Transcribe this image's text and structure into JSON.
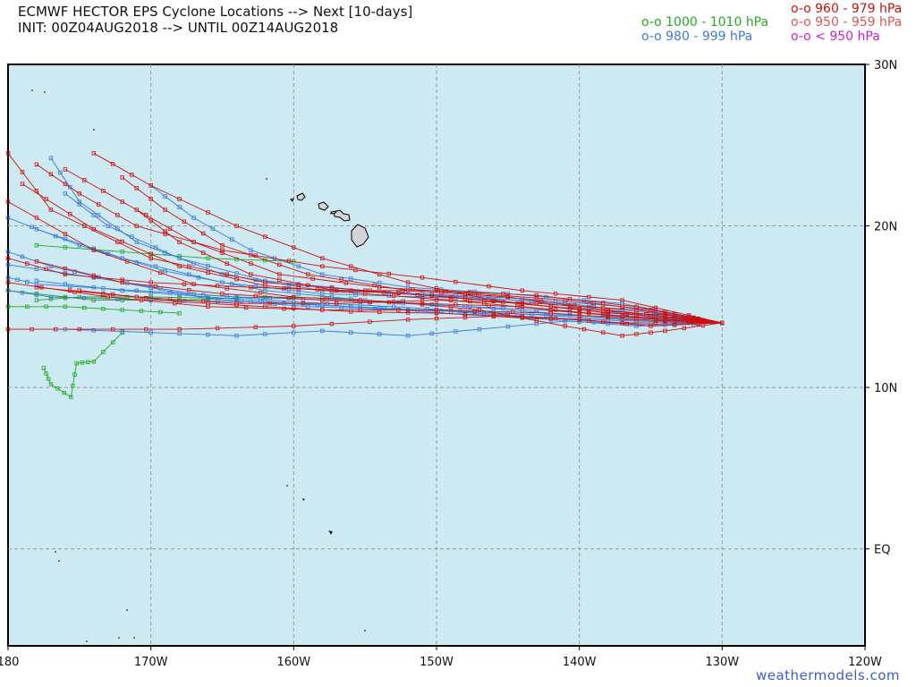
{
  "header": {
    "title": "ECMWF HECTOR EPS Cyclone Locations --> Next [10-days]",
    "init": "INIT: 00Z04AUG2018 --> UNTIL 00Z14AUG2018"
  },
  "legend": [
    {
      "label": "o-o 960 - 979 hPa",
      "color": "#cc1111"
    },
    {
      "label": "o-o 1000 - 1010 hPa",
      "color": "#22aa22"
    },
    {
      "label": "o-o 950 - 959 hPa",
      "color": "#e05555"
    },
    {
      "label": "o-o 980 - 999 hPa",
      "color": "#3a7ad8"
    },
    {
      "label": "o-o < 950 hPa",
      "color": "#cc22cc"
    }
  ],
  "axes": {
    "x_ticks": [
      "180",
      "170W",
      "160W",
      "150W",
      "140W",
      "130W",
      "120W"
    ],
    "y_ticks": [
      "30N",
      "20N",
      "10N",
      "EQ"
    ]
  },
  "credit": "weathermodels.com",
  "colors": {
    "ocean": "#cde9f1",
    "grid": "#999999",
    "red": "#cc1111",
    "blue": "#3a7ad8",
    "green": "#22aa22"
  },
  "chart_data": {
    "type": "map-tracks",
    "lon_range": [
      -180,
      -120
    ],
    "lat_range": [
      -6,
      30
    ],
    "origin": {
      "lon": -130,
      "lat": 14
    },
    "tracks": [
      {
        "color": "red",
        "points": [
          [
            -130,
            14
          ],
          [
            -134,
            14.5
          ],
          [
            -138,
            14.6
          ],
          [
            -142,
            15
          ],
          [
            -148,
            15.5
          ],
          [
            -155,
            16
          ],
          [
            -162,
            16.5
          ],
          [
            -170,
            18
          ],
          [
            -177,
            21
          ],
          [
            -180,
            24.5
          ]
        ]
      },
      {
        "color": "red",
        "points": [
          [
            -130,
            14
          ],
          [
            -135,
            14.4
          ],
          [
            -140,
            14.8
          ],
          [
            -146,
            15.4
          ],
          [
            -152,
            16.5
          ],
          [
            -158,
            18
          ],
          [
            -164,
            20
          ],
          [
            -170,
            22.5
          ],
          [
            -174,
            24.5
          ]
        ]
      },
      {
        "color": "red",
        "points": [
          [
            -130,
            14
          ],
          [
            -135,
            14.8
          ],
          [
            -141,
            15.4
          ],
          [
            -147,
            15.8
          ],
          [
            -154,
            16.2
          ],
          [
            -161,
            17
          ],
          [
            -167,
            19
          ],
          [
            -172,
            21.5
          ],
          [
            -176,
            23.5
          ]
        ]
      },
      {
        "color": "red",
        "points": [
          [
            -130,
            14
          ],
          [
            -136,
            14.6
          ],
          [
            -142,
            15
          ],
          [
            -149,
            15.6
          ],
          [
            -156,
            16
          ],
          [
            -163,
            16.2
          ],
          [
            -170,
            16.5
          ],
          [
            -176,
            17
          ],
          [
            -180,
            18
          ]
        ]
      },
      {
        "color": "red",
        "points": [
          [
            -130,
            14
          ],
          [
            -136,
            14.2
          ],
          [
            -142,
            14.6
          ],
          [
            -150,
            14.8
          ],
          [
            -158,
            14.8
          ],
          [
            -166,
            15
          ],
          [
            -173,
            15.6
          ],
          [
            -180,
            16.5
          ]
        ]
      },
      {
        "color": "red",
        "points": [
          [
            -130,
            14
          ],
          [
            -135,
            13.8
          ],
          [
            -140,
            14.2
          ],
          [
            -146,
            14.4
          ],
          [
            -152,
            14.2
          ],
          [
            -160,
            13.8
          ],
          [
            -168,
            13.6
          ],
          [
            -175,
            13.6
          ],
          [
            -180,
            13.6
          ]
        ]
      },
      {
        "color": "red",
        "points": [
          [
            -130,
            14
          ],
          [
            -137,
            15.4
          ],
          [
            -144,
            16
          ],
          [
            -151,
            16.8
          ],
          [
            -158,
            17.5
          ],
          [
            -165,
            18.5
          ],
          [
            -171,
            20
          ],
          [
            -175,
            22
          ],
          [
            -178,
            23.8
          ]
        ]
      },
      {
        "color": "red",
        "points": [
          [
            -130,
            14
          ],
          [
            -134,
            13.5
          ],
          [
            -137,
            13.2
          ],
          [
            -141,
            13.8
          ],
          [
            -147,
            14.8
          ],
          [
            -153,
            15.3
          ],
          [
            -160,
            15.6
          ],
          [
            -167,
            16.4
          ],
          [
            -174,
            18.5
          ],
          [
            -180,
            21.5
          ]
        ]
      },
      {
        "color": "red",
        "points": [
          [
            -130,
            14
          ],
          [
            -136,
            15
          ],
          [
            -143,
            15.7
          ],
          [
            -150,
            16
          ],
          [
            -157,
            16
          ],
          [
            -163,
            17
          ],
          [
            -168,
            19
          ],
          [
            -171,
            21
          ]
        ]
      },
      {
        "color": "red",
        "points": [
          [
            -130,
            14
          ],
          [
            -137,
            14.4
          ],
          [
            -144,
            15
          ],
          [
            -151,
            15.2
          ],
          [
            -158,
            15.4
          ],
          [
            -165,
            15.8
          ],
          [
            -172,
            16.5
          ],
          [
            -178,
            17.8
          ]
        ]
      },
      {
        "color": "red",
        "points": [
          [
            -130,
            14
          ],
          [
            -136,
            14.8
          ],
          [
            -143,
            15.2
          ],
          [
            -150,
            15.4
          ],
          [
            -157,
            15.2
          ],
          [
            -164,
            15.2
          ],
          [
            -171,
            15.6
          ],
          [
            -178,
            16.2
          ]
        ]
      },
      {
        "color": "red",
        "points": [
          [
            -130,
            14
          ],
          [
            -138,
            14.8
          ],
          [
            -145,
            15.6
          ],
          [
            -152,
            16
          ],
          [
            -159,
            17
          ],
          [
            -165,
            18.8
          ],
          [
            -169,
            21
          ],
          [
            -172,
            23
          ]
        ]
      },
      {
        "color": "red",
        "points": [
          [
            -130,
            14
          ],
          [
            -136,
            14.3
          ],
          [
            -142,
            14.8
          ],
          [
            -149,
            15.4
          ],
          [
            -155,
            15.8
          ],
          [
            -162,
            16.3
          ],
          [
            -168,
            17.5
          ],
          [
            -174,
            19.8
          ],
          [
            -179,
            22.6
          ]
        ]
      },
      {
        "color": "red",
        "points": [
          [
            -130,
            14
          ],
          [
            -137,
            14
          ],
          [
            -144,
            14.4
          ],
          [
            -150,
            14.6
          ],
          [
            -156,
            14.7
          ],
          [
            -162,
            15
          ],
          [
            -168,
            15.3
          ],
          [
            -175,
            16
          ]
        ]
      },
      {
        "color": "blue",
        "points": [
          [
            -130,
            14
          ],
          [
            -136,
            14.2
          ],
          [
            -142,
            14.6
          ],
          [
            -148,
            15
          ],
          [
            -155,
            15.4
          ],
          [
            -162,
            16
          ],
          [
            -169,
            17.2
          ],
          [
            -175,
            18.8
          ],
          [
            -180,
            20.5
          ]
        ]
      },
      {
        "color": "blue",
        "points": [
          [
            -130,
            14
          ],
          [
            -135,
            13.9
          ],
          [
            -141,
            14.1
          ],
          [
            -147,
            13.6
          ],
          [
            -152,
            13.2
          ],
          [
            -158,
            13.5
          ],
          [
            -164,
            13.2
          ],
          [
            -170,
            13.4
          ],
          [
            -176,
            13.6
          ]
        ]
      },
      {
        "color": "blue",
        "points": [
          [
            -130,
            14
          ],
          [
            -137,
            14.6
          ],
          [
            -144,
            15.4
          ],
          [
            -151,
            15.6
          ],
          [
            -158,
            15.8
          ],
          [
            -165,
            16.5
          ],
          [
            -172,
            18
          ],
          [
            -178,
            19.8
          ]
        ]
      },
      {
        "color": "blue",
        "points": [
          [
            -130,
            14
          ],
          [
            -136,
            14.4
          ],
          [
            -143,
            14.8
          ],
          [
            -150,
            15.1
          ],
          [
            -157,
            15.4
          ],
          [
            -164,
            15.6
          ],
          [
            -171,
            16
          ],
          [
            -178,
            16.4
          ],
          [
            -180,
            16.8
          ]
        ]
      },
      {
        "color": "blue",
        "points": [
          [
            -130,
            14
          ],
          [
            -137,
            15
          ],
          [
            -144,
            15.5
          ],
          [
            -151,
            15.8
          ],
          [
            -158,
            16
          ],
          [
            -165,
            17
          ],
          [
            -171,
            19
          ],
          [
            -175,
            21.5
          ],
          [
            -177,
            24.2
          ]
        ]
      },
      {
        "color": "blue",
        "points": [
          [
            -130,
            14
          ],
          [
            -136,
            13.8
          ],
          [
            -142,
            14.2
          ],
          [
            -148,
            14.5
          ],
          [
            -154,
            14.9
          ],
          [
            -160,
            15.2
          ],
          [
            -166,
            15.6
          ],
          [
            -172,
            16
          ],
          [
            -178,
            16.6
          ]
        ]
      },
      {
        "color": "blue",
        "points": [
          [
            -130,
            14
          ],
          [
            -137,
            14.2
          ],
          [
            -145,
            14.6
          ],
          [
            -152,
            14.8
          ],
          [
            -159,
            15
          ],
          [
            -166,
            15.5
          ],
          [
            -172,
            16.5
          ],
          [
            -177,
            17.5
          ],
          [
            -180,
            18.4
          ]
        ]
      },
      {
        "color": "blue",
        "points": [
          [
            -130,
            14
          ],
          [
            -135,
            14.6
          ],
          [
            -141,
            15.2
          ],
          [
            -148,
            15.6
          ],
          [
            -155,
            16
          ],
          [
            -162,
            16.6
          ],
          [
            -168,
            18
          ],
          [
            -173,
            20
          ],
          [
            -176,
            22
          ]
        ]
      },
      {
        "color": "blue",
        "points": [
          [
            -130,
            14
          ],
          [
            -138,
            14.4
          ],
          [
            -146,
            14.6
          ],
          [
            -153,
            15
          ],
          [
            -160,
            15.3
          ],
          [
            -167,
            15.8
          ],
          [
            -174,
            16.8
          ],
          [
            -180,
            17.6
          ]
        ]
      },
      {
        "color": "blue",
        "points": [
          [
            -130,
            14
          ],
          [
            -136,
            14.1
          ],
          [
            -142,
            14.3
          ],
          [
            -149,
            14.7
          ],
          [
            -156,
            15
          ],
          [
            -163,
            15.3
          ],
          [
            -170,
            15.4
          ],
          [
            -177,
            15.6
          ],
          [
            -180,
            16
          ]
        ]
      },
      {
        "color": "blue",
        "points": [
          [
            -130,
            14
          ],
          [
            -137,
            15.2
          ],
          [
            -145,
            15.8
          ],
          [
            -152,
            16.2
          ],
          [
            -158,
            17
          ],
          [
            -163,
            18.5
          ],
          [
            -167,
            20.5
          ],
          [
            -170,
            22.5
          ]
        ]
      },
      {
        "color": "green",
        "points": [
          [
            -156,
            15.5
          ],
          [
            -162,
            15.6
          ],
          [
            -168,
            15.4
          ],
          [
            -174,
            15.4
          ],
          [
            -180,
            16
          ]
        ]
      },
      {
        "color": "green",
        "points": [
          [
            -160,
            17.8
          ],
          [
            -166,
            18
          ],
          [
            -172,
            18.4
          ],
          [
            -178,
            18.8
          ]
        ]
      },
      {
        "color": "green",
        "points": [
          [
            -168,
            14.6
          ],
          [
            -172,
            14.8
          ],
          [
            -176,
            15
          ],
          [
            -180,
            15
          ]
        ]
      },
      {
        "color": "green",
        "points": [
          [
            -172,
            13.4
          ],
          [
            -174,
            11.6
          ],
          [
            -175.2,
            11.5
          ],
          [
            -175.6,
            9.4
          ],
          [
            -177,
            10.2
          ],
          [
            -177.5,
            11.2
          ]
        ]
      },
      {
        "color": "green",
        "points": [
          [
            -164,
            15.5
          ],
          [
            -170,
            15.6
          ],
          [
            -175,
            15.6
          ],
          [
            -178,
            15.4
          ]
        ]
      }
    ]
  }
}
